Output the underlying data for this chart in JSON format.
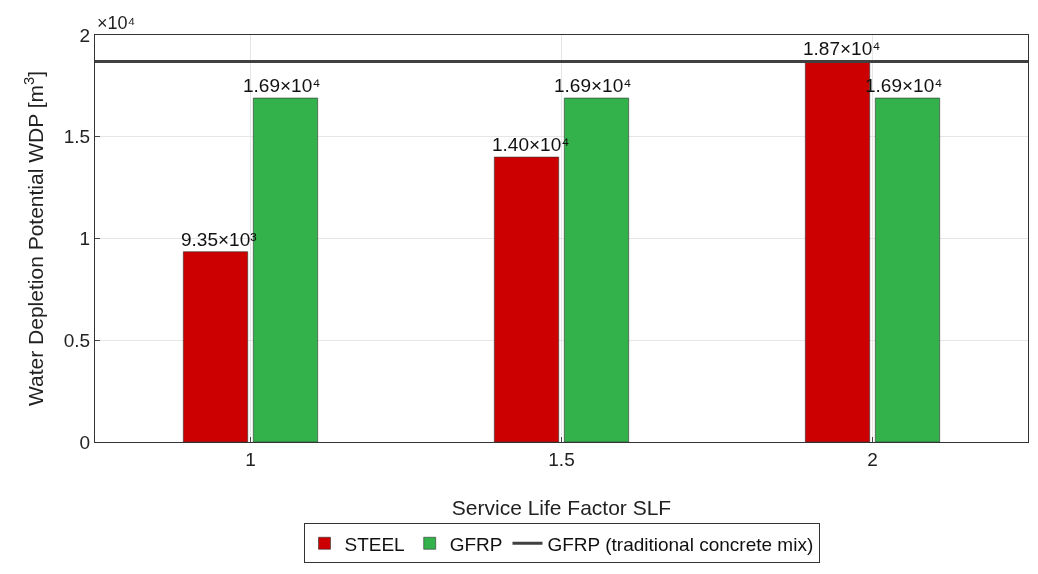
{
  "chart_data": {
    "type": "bar",
    "xlabel": "Service Life Factor SLF",
    "ylabel": "Water Depletion Potential WDP [m$^{3}$]",
    "categories": [
      "1",
      "1.5",
      "2"
    ],
    "series": [
      {
        "name": "STEEL",
        "color": "#cc0000",
        "values": [
          0.935,
          1.4,
          1.87
        ]
      },
      {
        "name": "GFRP",
        "color": "#33b24c",
        "values": [
          1.69,
          1.69,
          1.69
        ]
      }
    ],
    "ylim": [
      0,
      2
    ],
    "yticks": [
      0,
      0.5,
      1,
      1.5,
      2
    ],
    "annotations": [
      "×10⁴",
      {
        "text": "9.35×10³",
        "x": "1",
        "y": 0.935
      },
      {
        "text": "1.40×10⁴",
        "x": "1.5",
        "y": 1.4
      },
      {
        "text": "1.87×10⁴",
        "x": "2",
        "y": 1.87
      },
      {
        "text": "1.69×10⁴",
        "x": "1",
        "y": 1.69
      },
      {
        "text": "1.69×10⁴",
        "x": "1.5",
        "y": 1.69
      },
      {
        "text": "1.69×10⁴",
        "x": "2",
        "y": 1.69
      }
    ],
    "ref_lines": [
      {
        "axis": "y",
        "value": 1.87,
        "label": "GFRP (traditional concrete mix)",
        "color": "#404040",
        "line_style": "solid"
      }
    ],
    "grid": true,
    "legend": "bottom"
  }
}
